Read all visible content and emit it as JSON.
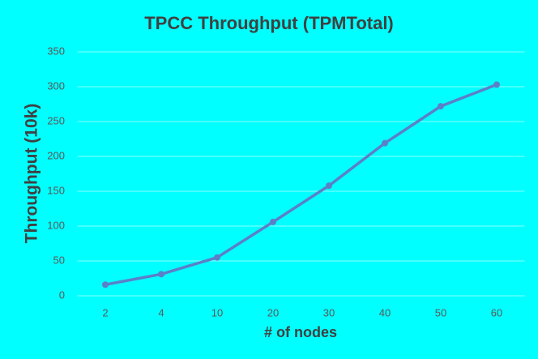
{
  "chart_data": {
    "type": "line",
    "title": "TPCC Throughput (TPMTotal)",
    "x_label": "# of nodes",
    "y_label": "Throughput (10k)",
    "categories": [
      "2",
      "4",
      "10",
      "20",
      "30",
      "40",
      "50",
      "60"
    ],
    "series": [
      {
        "name": "TPMTotal",
        "color": "#5b80c8",
        "values": [
          16,
          31,
          55,
          106,
          158,
          219,
          272,
          303
        ]
      }
    ],
    "ylim": [
      0,
      350
    ],
    "yticks": [
      0,
      50,
      100,
      150,
      200,
      250,
      300,
      350
    ],
    "grid": true
  }
}
